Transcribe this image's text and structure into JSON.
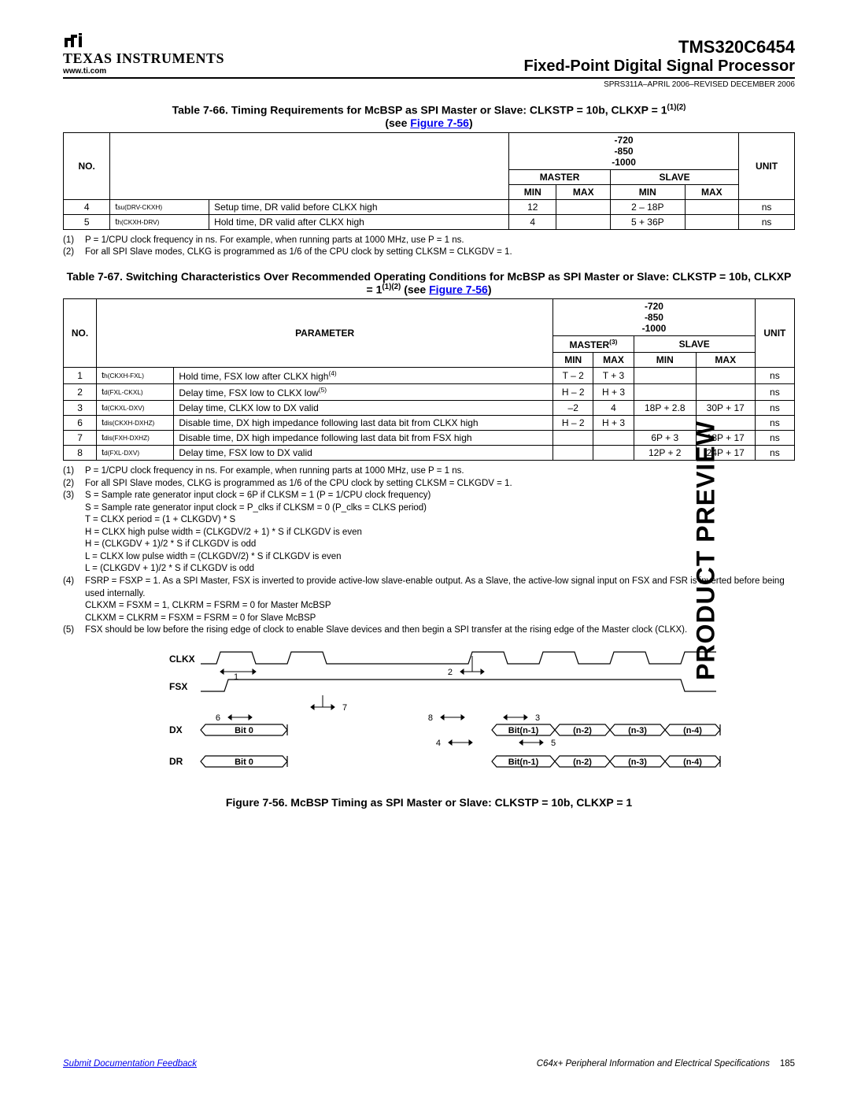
{
  "header": {
    "logo_name": "TEXAS INSTRUMENTS",
    "logo_url": "www.ti.com",
    "part_no": "TMS320C6454",
    "part_desc": "Fixed-Point Digital Signal Processor",
    "doc_rev": "SPRS311A–APRIL 2006–REVISED DECEMBER 2006"
  },
  "side_label": "PRODUCT PREVIEW",
  "table66": {
    "title_pre": "Table 7-66. Timing Requirements for McBSP as SPI Master or Slave: CLKSTP = 10b, CLKXP = 1",
    "title_sup": "(1)(2)",
    "title_see": "(see ",
    "title_link": "Figure 7-56",
    "title_close": ")",
    "speed_grades": "-720\n-850\n-1000",
    "cols": {
      "no": "NO.",
      "master": "MASTER",
      "slave": "SLAVE",
      "unit": "UNIT",
      "min": "MIN",
      "max": "MAX"
    },
    "rows": [
      {
        "no": "4",
        "sym": "t",
        "sub": "su(DRV-CKXH)",
        "desc": "Setup time, DR valid before CLKX high",
        "m_min": "12",
        "m_max": "",
        "s_min": "2 – 18P",
        "s_max": "",
        "unit": "ns"
      },
      {
        "no": "5",
        "sym": "t",
        "sub": "h(CKXH-DRV)",
        "desc": "Hold time, DR valid after CLKX high",
        "m_min": "4",
        "m_max": "",
        "s_min": "5 + 36P",
        "s_max": "",
        "unit": "ns"
      }
    ],
    "footnotes": [
      {
        "n": "(1)",
        "t": "P = 1/CPU clock frequency in ns. For example, when running parts at 1000 MHz, use P = 1 ns."
      },
      {
        "n": "(2)",
        "t": "For all SPI Slave modes, CLKG is programmed as 1/6 of the CPU clock by setting CLKSM = CLKGDV = 1."
      }
    ]
  },
  "table67": {
    "title_pre": "Table 7-67. Switching Characteristics Over Recommended Operating Conditions for McBSP as SPI Master or Slave: CLKSTP = 10b, CLKXP = 1",
    "title_sup": "(1)(2)",
    "title_see": " (see ",
    "title_link": "Figure 7-56",
    "title_close": ")",
    "speed_grades": "-720\n-850\n-1000",
    "cols": {
      "no": "NO.",
      "param": "PARAMETER",
      "master": "MASTER",
      "master_sup": "(3)",
      "slave": "SLAVE",
      "unit": "UNIT",
      "min": "MIN",
      "max": "MAX"
    },
    "rows": [
      {
        "no": "1",
        "sym": "t",
        "sub": "h(CKXH-FXL)",
        "desc": "Hold time, FSX low after CLKX high",
        "desc_sup": "(4)",
        "m_min": "T – 2",
        "m_max": "T + 3",
        "s_min": "",
        "s_max": "",
        "unit": "ns"
      },
      {
        "no": "2",
        "sym": "t",
        "sub": "d(FXL-CKXL)",
        "desc": "Delay time, FSX low to CLKX low",
        "desc_sup": "(5)",
        "m_min": "H – 2",
        "m_max": "H + 3",
        "s_min": "",
        "s_max": "",
        "unit": "ns"
      },
      {
        "no": "3",
        "sym": "t",
        "sub": "d(CKXL-DXV)",
        "desc": "Delay time, CLKX low to DX valid",
        "desc_sup": "",
        "m_min": "–2",
        "m_max": "4",
        "s_min": "18P + 2.8",
        "s_max": "30P + 17",
        "unit": "ns"
      },
      {
        "no": "6",
        "sym": "t",
        "sub": "dis(CKXH-DXHZ)",
        "desc": "Disable time, DX high impedance following last data bit from CLKX high",
        "desc_sup": "",
        "m_min": "H – 2",
        "m_max": "H + 3",
        "s_min": "",
        "s_max": "",
        "unit": "ns"
      },
      {
        "no": "7",
        "sym": "t",
        "sub": "dis(FXH-DXHZ)",
        "desc": "Disable time, DX high impedance following last data bit from FSX high",
        "desc_sup": "",
        "m_min": "",
        "m_max": "",
        "s_min": "6P + 3",
        "s_max": "18P + 17",
        "unit": "ns"
      },
      {
        "no": "8",
        "sym": "t",
        "sub": "d(FXL-DXV)",
        "desc": "Delay time, FSX low to DX valid",
        "desc_sup": "",
        "m_min": "",
        "m_max": "",
        "s_min": "12P + 2",
        "s_max": "24P + 17",
        "unit": "ns"
      }
    ],
    "footnotes": [
      {
        "n": "(1)",
        "t": "P = 1/CPU clock frequency in ns. For example, when running parts at 1000 MHz, use P = 1 ns."
      },
      {
        "n": "(2)",
        "t": "For all SPI Slave modes, CLKG is programmed as 1/6 of the CPU clock by setting CLKSM = CLKGDV = 1."
      },
      {
        "n": "(3)",
        "t": "S = Sample rate generator input clock = 6P if CLKSM = 1 (P = 1/CPU clock frequency)"
      },
      {
        "n": "",
        "t": "S = Sample rate generator input clock = P_clks if CLKSM = 0 (P_clks = CLKS period)"
      },
      {
        "n": "",
        "t": "T = CLKX period = (1 + CLKGDV) * S"
      },
      {
        "n": "",
        "t": "H = CLKX high pulse width = (CLKGDV/2 + 1) * S if CLKGDV is even"
      },
      {
        "n": "",
        "t": "H = (CLKGDV + 1)/2 * S if CLKGDV is odd"
      },
      {
        "n": "",
        "t": "L = CLKX low pulse width = (CLKGDV/2) * S if CLKGDV is even"
      },
      {
        "n": "",
        "t": "L = (CLKGDV + 1)/2 * S if CLKGDV is odd"
      },
      {
        "n": "(4)",
        "t": "FSRP = FSXP = 1. As a SPI Master, FSX is inverted to provide active-low slave-enable output. As a Slave, the active-low signal input on FSX and FSR is inverted before being used internally."
      },
      {
        "n": "",
        "t": "CLKXM = FSXM = 1, CLKRM = FSRM = 0 for Master McBSP"
      },
      {
        "n": "",
        "t": "CLKXM = CLKRM = FSXM = FSRM = 0 for Slave McBSP"
      },
      {
        "n": "(5)",
        "t": "FSX should be low before the rising edge of clock to enable Slave devices and then begin a SPI transfer at the rising edge of the Master clock (CLKX)."
      }
    ]
  },
  "figure": {
    "caption": "Figure 7-56. McBSP Timing as SPI Master or Slave: CLKSTP = 10b, CLKXP = 1",
    "labels": {
      "clkx": "CLKX",
      "fsx": "FSX",
      "dx": "DX",
      "dr": "DR"
    },
    "nums": [
      "1",
      "2",
      "3",
      "4",
      "5",
      "6",
      "7",
      "8"
    ],
    "bits": [
      "Bit 0",
      "Bit(n-1)",
      "(n-2)",
      "(n-3)",
      "(n-4)"
    ],
    "colors": {
      "line": "#000000",
      "bg": "#ffffff"
    }
  },
  "footer": {
    "left_link": "Submit Documentation Feedback",
    "right_text": "C64x+ Peripheral Information and Electrical Specifications",
    "page_no": "185"
  }
}
